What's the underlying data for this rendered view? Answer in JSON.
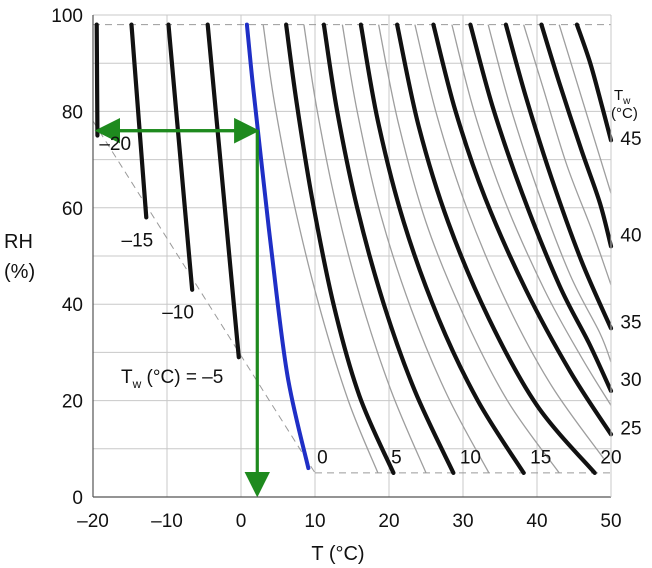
{
  "chart_data": {
    "type": "line",
    "xlabel": "T (°C)",
    "ylabel_line1": "RH",
    "ylabel_line2": "(%)",
    "xlim": [
      -20,
      50
    ],
    "ylim": [
      0,
      100
    ],
    "xticks": [
      "–20",
      "–10",
      "0",
      "10",
      "20",
      "30",
      "40",
      "50"
    ],
    "yticks": [
      "0",
      "20",
      "40",
      "60",
      "80",
      "100"
    ],
    "grid": true,
    "tw_header": {
      "main": "T",
      "sub": "w",
      "unit": "(°C)"
    },
    "tw_in_plot_label": {
      "main": "T",
      "sub": "w",
      "rest": " (°C) = –5"
    },
    "series": [
      {
        "tw": -20,
        "label": "–20",
        "points": [
          [
            -19.5,
            98
          ],
          [
            -19.4,
            75
          ]
        ]
      },
      {
        "tw": -15,
        "label": "–15",
        "points": [
          [
            -14.8,
            98
          ],
          [
            -12.8,
            58
          ]
        ]
      },
      {
        "tw": -10,
        "label": "–10",
        "points": [
          [
            -9.8,
            98
          ],
          [
            -6.6,
            43
          ]
        ]
      },
      {
        "tw": -5,
        "label": "T_w (°C) = –5",
        "points": [
          [
            -4.5,
            98
          ],
          [
            -0.3,
            29
          ]
        ]
      },
      {
        "tw": 0,
        "label": "0",
        "points": [
          [
            0.8,
            98
          ],
          [
            1.5,
            87
          ],
          [
            2.5,
            73
          ],
          [
            4.2,
            50
          ],
          [
            6.3,
            25
          ],
          [
            9.1,
            6
          ]
        ]
      },
      {
        "tw": 5,
        "label": "5",
        "points": [
          [
            6.1,
            98
          ],
          [
            7.5,
            82
          ],
          [
            9.6,
            62
          ],
          [
            12.5,
            40
          ],
          [
            16,
            21
          ],
          [
            20.6,
            5
          ]
        ]
      },
      {
        "tw": 10,
        "label": "10",
        "points": [
          [
            11.2,
            98
          ],
          [
            13,
            80
          ],
          [
            15.7,
            60
          ],
          [
            19.3,
            40
          ],
          [
            23.5,
            22
          ],
          [
            28.7,
            5
          ]
        ]
      },
      {
        "tw": 15,
        "label": "15",
        "points": [
          [
            16.2,
            98
          ],
          [
            18.5,
            78
          ],
          [
            22,
            57
          ],
          [
            26.7,
            37
          ],
          [
            32,
            20
          ],
          [
            38.2,
            5
          ]
        ]
      },
      {
        "tw": 20,
        "label": "20",
        "points": [
          [
            21.1,
            98
          ],
          [
            24,
            77
          ],
          [
            28,
            57
          ],
          [
            33.5,
            37
          ],
          [
            40,
            19
          ],
          [
            47.8,
            5
          ]
        ]
      },
      {
        "tw": 25,
        "label": "25",
        "points": [
          [
            26,
            98
          ],
          [
            29,
            80
          ],
          [
            33,
            62
          ],
          [
            38.5,
            43
          ],
          [
            44.5,
            26
          ],
          [
            50,
            13
          ]
        ]
      },
      {
        "tw": 30,
        "label": "30",
        "points": [
          [
            31,
            98
          ],
          [
            34,
            81
          ],
          [
            38,
            63
          ],
          [
            43,
            44
          ],
          [
            47,
            32
          ],
          [
            50,
            22
          ]
        ]
      },
      {
        "tw": 35,
        "label": "35",
        "points": [
          [
            35.8,
            98
          ],
          [
            38.5,
            83
          ],
          [
            42,
            66
          ],
          [
            46,
            49
          ],
          [
            50,
            35
          ]
        ]
      },
      {
        "tw": 40,
        "label": "40",
        "points": [
          [
            40.6,
            98
          ],
          [
            43,
            86
          ],
          [
            46,
            72
          ],
          [
            48.5,
            61
          ],
          [
            50,
            52
          ]
        ]
      },
      {
        "tw": 45,
        "label": "45",
        "points": [
          [
            45.4,
            98
          ],
          [
            47.2,
            90
          ],
          [
            48.8,
            81
          ],
          [
            50,
            74
          ]
        ]
      }
    ],
    "highlighted_series_tw": 0,
    "thin_curves": [
      [
        [
          3,
          98
        ],
        [
          4.5,
          82
        ],
        [
          7,
          62
        ],
        [
          10.5,
          40
        ],
        [
          14.5,
          20
        ],
        [
          18.5,
          5
        ]
      ],
      [
        [
          8.5,
          98
        ],
        [
          10.2,
          81
        ],
        [
          12.8,
          61
        ],
        [
          16.2,
          41
        ],
        [
          20.3,
          22
        ],
        [
          25,
          5
        ]
      ],
      [
        [
          13.7,
          98
        ],
        [
          15.7,
          80
        ],
        [
          18.8,
          59
        ],
        [
          23,
          39
        ],
        [
          27.9,
          21
        ],
        [
          33.5,
          5
        ]
      ],
      [
        [
          18.6,
          98
        ],
        [
          21.2,
          78
        ],
        [
          25,
          57
        ],
        [
          30,
          38
        ],
        [
          36,
          20
        ],
        [
          43,
          5
        ]
      ],
      [
        [
          23.5,
          98
        ],
        [
          26.5,
          79
        ],
        [
          30.5,
          60
        ],
        [
          36,
          40
        ],
        [
          42,
          23
        ],
        [
          49,
          8
        ]
      ],
      [
        [
          28.5,
          98
        ],
        [
          31.5,
          80
        ],
        [
          35.5,
          62
        ],
        [
          41,
          43
        ],
        [
          46,
          29
        ],
        [
          50,
          19
        ]
      ],
      [
        [
          33.4,
          98
        ],
        [
          36.2,
          82
        ],
        [
          40,
          64
        ],
        [
          44.5,
          46
        ],
        [
          48.5,
          34
        ],
        [
          50,
          28
        ]
      ],
      [
        [
          38.2,
          98
        ],
        [
          40.8,
          85
        ],
        [
          44,
          69
        ],
        [
          47.5,
          55
        ],
        [
          50,
          44
        ]
      ],
      [
        [
          43,
          98
        ],
        [
          45,
          88
        ],
        [
          47.4,
          76
        ],
        [
          49.2,
          67
        ],
        [
          50,
          63
        ]
      ]
    ],
    "annotation": {
      "point": [
        2.2,
        76
      ],
      "horizontal_arrow_to_x": -20,
      "vertical_arrow_to_y": 0
    },
    "dashed_boundaries": [
      [
        [
          -20,
          98
        ],
        [
          50,
          98
        ]
      ],
      [
        [
          50,
          98
        ],
        [
          50,
          5
        ]
      ],
      [
        [
          10,
          5
        ],
        [
          50,
          5
        ]
      ],
      [
        [
          -20,
          78
        ],
        [
          10,
          5
        ]
      ]
    ]
  }
}
